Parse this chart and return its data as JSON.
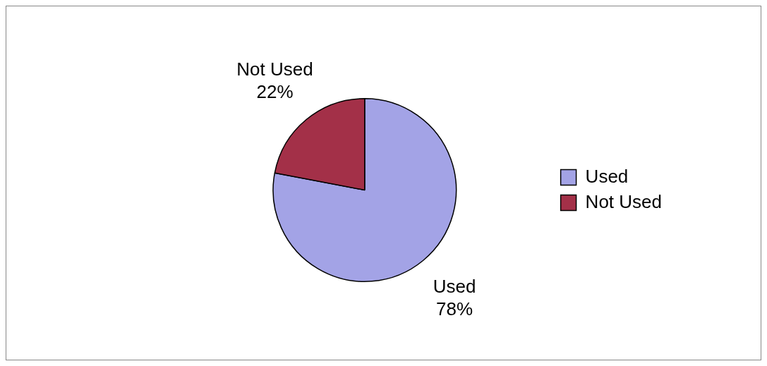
{
  "chart_data": {
    "type": "pie",
    "categories": [
      "Used",
      "Not Used"
    ],
    "values": [
      78,
      22
    ],
    "colors": [
      "#a3a3e6",
      "#a33048"
    ],
    "value_labels": [
      "78%",
      "22%"
    ],
    "legend": "right"
  }
}
